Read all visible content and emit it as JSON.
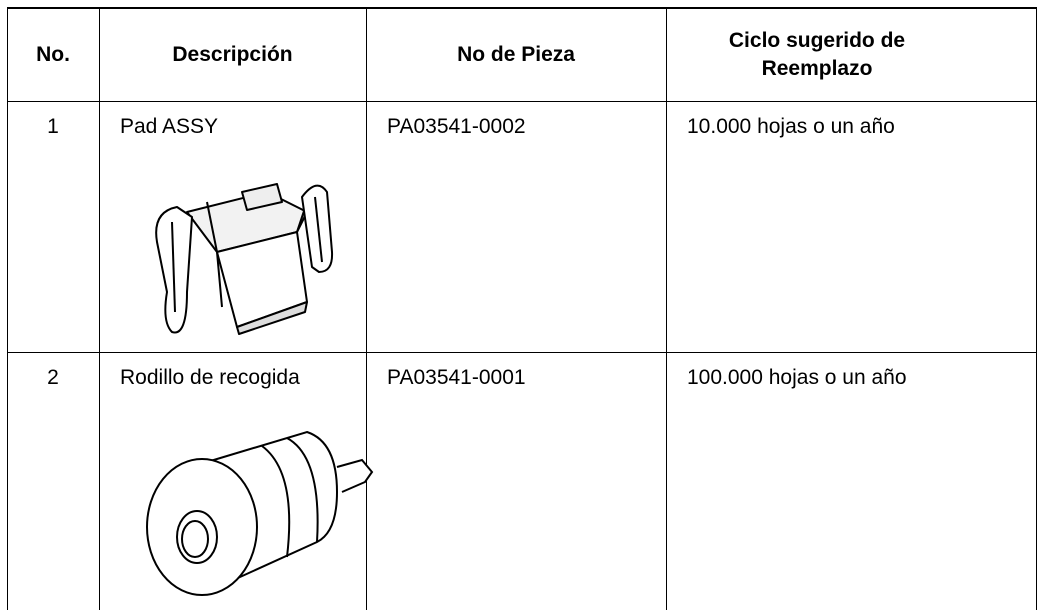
{
  "table": {
    "headers": [
      "No.",
      "Descripción",
      "No de Pieza",
      "Ciclo sugerido de Reemplazo"
    ],
    "rows": [
      [
        "1",
        "Pad ASSY",
        "PA03541-0002",
        "10.000 hojas o un año"
      ],
      [
        "2",
        "Rodillo de recogida",
        "PA03541-0001",
        "100.000 hojas o un año"
      ]
    ]
  }
}
